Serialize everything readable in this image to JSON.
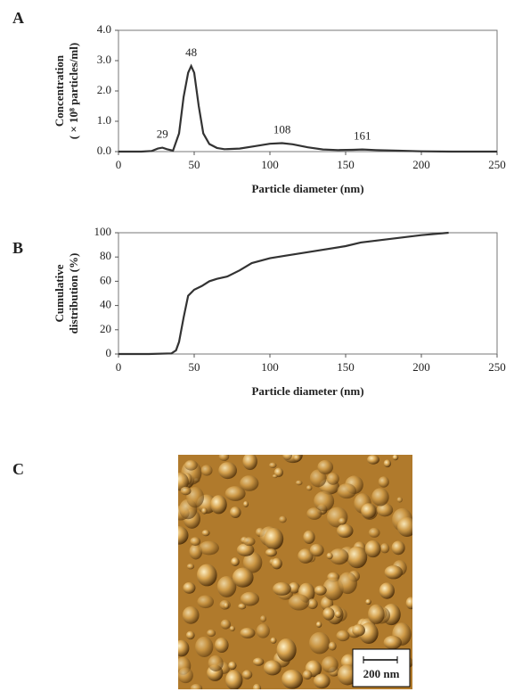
{
  "chart_data": [
    {
      "type": "line",
      "panel_label": "A",
      "x_label": "Particle diameter (nm)",
      "y_label": [
        "Concentration",
        "( × 10⁸ particles/ml)"
      ],
      "x": [
        0,
        15,
        22,
        26,
        29,
        32,
        36,
        40,
        43,
        46,
        48,
        50,
        53,
        56,
        60,
        65,
        70,
        80,
        90,
        100,
        108,
        115,
        125,
        135,
        145,
        155,
        161,
        170,
        185,
        200,
        220,
        250
      ],
      "values": [
        0,
        0,
        0.02,
        0.1,
        0.13,
        0.08,
        0.03,
        0.6,
        1.8,
        2.6,
        2.82,
        2.6,
        1.5,
        0.6,
        0.25,
        0.12,
        0.08,
        0.1,
        0.18,
        0.26,
        0.28,
        0.24,
        0.14,
        0.07,
        0.05,
        0.06,
        0.07,
        0.05,
        0.03,
        0.01,
        0,
        0
      ],
      "color": "#333333",
      "annotations": [
        {
          "x": 29,
          "y": 0.13
        },
        {
          "x": 48,
          "y": 2.82
        },
        {
          "x": 108,
          "y": 0.28
        },
        {
          "x": 161,
          "y": 0.07
        }
      ],
      "xlim": [
        0,
        250
      ],
      "xticks": [
        0,
        50,
        100,
        150,
        200,
        250
      ],
      "ylim": [
        0,
        4
      ],
      "yticks": [
        {
          "value": 0,
          "label": "0.0"
        },
        {
          "value": 1,
          "label": "1.0"
        },
        {
          "value": 2,
          "label": "2.0"
        },
        {
          "value": 3,
          "label": "3.0"
        },
        {
          "value": 4,
          "label": "4.0"
        }
      ]
    },
    {
      "type": "line",
      "panel_label": "B",
      "x_label": "Particle diameter (nm)",
      "y_label": [
        "Cumulative",
        "distribution  (%)"
      ],
      "x": [
        0,
        20,
        35,
        38,
        40,
        43,
        46,
        50,
        55,
        60,
        65,
        72,
        80,
        88,
        100,
        110,
        130,
        150,
        160,
        180,
        200,
        218
      ],
      "values": [
        0,
        0,
        0.5,
        3,
        10,
        30,
        48,
        53,
        56,
        60,
        62,
        64,
        69,
        75,
        79,
        81,
        85,
        89,
        92,
        95,
        98,
        100
      ],
      "color": "#333333",
      "annotations": [],
      "xlim": [
        0,
        250
      ],
      "xticks": [
        0,
        50,
        100,
        150,
        200,
        250
      ],
      "ylim": [
        0,
        100
      ],
      "yticks": [
        0,
        20,
        40,
        60,
        80,
        100
      ]
    }
  ],
  "image": {
    "panel_label": "C",
    "scale_bar": "200 nm"
  }
}
